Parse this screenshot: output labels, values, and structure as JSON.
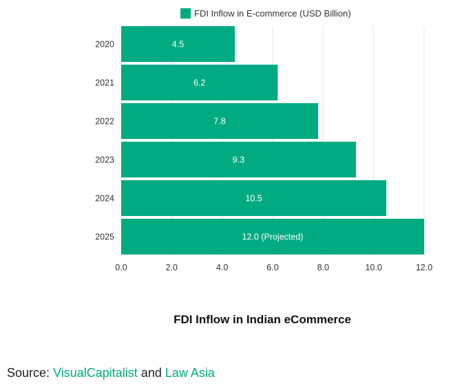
{
  "chart_data": {
    "type": "bar",
    "orientation": "horizontal",
    "categories": [
      "2020",
      "2021",
      "2022",
      "2023",
      "2024",
      "2025"
    ],
    "series": [
      {
        "name": "FDI Inflow in E-commerce (USD Billion)",
        "values": [
          4.5,
          6.2,
          7.8,
          9.3,
          10.5,
          12.0
        ],
        "labels": [
          "4.5",
          "6.2",
          "7.8",
          "9.3",
          "10.5",
          "12.0 (Projected)"
        ]
      }
    ],
    "xlim": [
      0,
      12
    ],
    "xticks": [
      "0.0",
      "2.0",
      "4.0",
      "6.0",
      "8.0",
      "10.0",
      "12.0"
    ],
    "grid": true,
    "legend_position": "top-center",
    "title": "FDI Inflow in Indian eCommerce",
    "colors": {
      "bar": "#00ab82",
      "grid": "#e5e5e5",
      "link": "#00ab82"
    }
  },
  "source": {
    "prefix": "Source:",
    "link1": "VisualCapitalist",
    "joiner": "and",
    "link2": "Law Asia"
  }
}
